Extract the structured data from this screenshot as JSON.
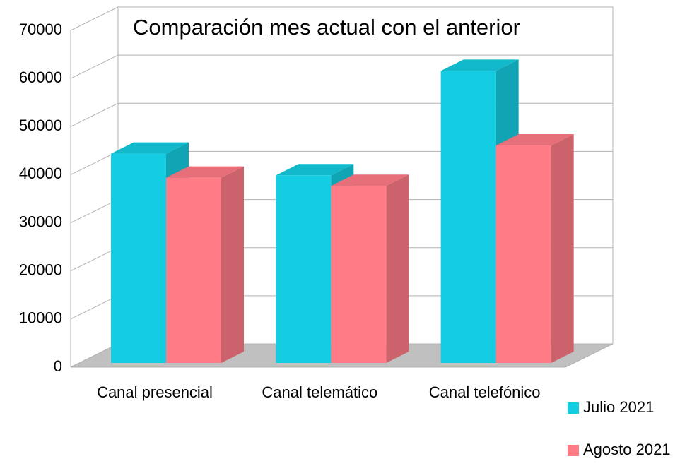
{
  "chart_data": {
    "type": "bar3d",
    "title": "Comparación mes actual con el anterior",
    "categories": [
      "Canal presencial",
      "Canal telemático",
      "Canal telefónico"
    ],
    "series": [
      {
        "name": "Julio 2021",
        "color": "#14cde2",
        "values": [
          43500,
          39000,
          60700
        ]
      },
      {
        "name": "Agosto 2021",
        "color": "#ff7b86",
        "values": [
          38500,
          36800,
          45200
        ]
      }
    ],
    "ylim": [
      0,
      70000
    ],
    "yticks": [
      0,
      10000,
      20000,
      30000,
      40000,
      50000,
      60000,
      70000
    ],
    "grid": true,
    "legend": "bottom-right"
  }
}
